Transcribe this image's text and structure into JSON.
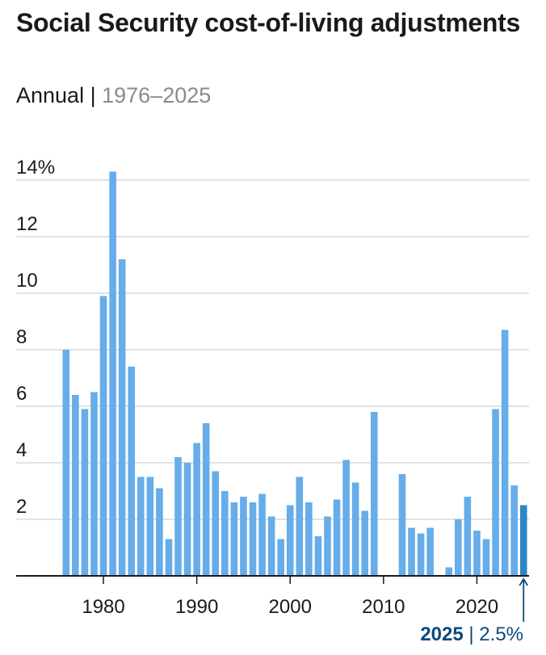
{
  "title": "Social Security cost-of-living adjustments",
  "subtitle": {
    "frequency": "Annual",
    "separator": "|",
    "range": "1976–2025"
  },
  "callout": {
    "year": "2025",
    "separator": "|",
    "value": "2.5%"
  },
  "colors": {
    "bar": "#66adea",
    "highlight": "#2e86c8",
    "grid": "#d0d0d0",
    "axis": "#1a1a1a",
    "callout": "#0b4a7a"
  },
  "chart_data": {
    "type": "bar",
    "title": "Social Security cost-of-living adjustments",
    "xlabel": "",
    "ylabel": "",
    "ylim": [
      0,
      14
    ],
    "y_ticks": [
      2,
      4,
      6,
      8,
      10,
      12,
      14
    ],
    "y_tick_labels": [
      "2",
      "4",
      "6",
      "8",
      "10",
      "12",
      "14%"
    ],
    "x_ticks": [
      1980,
      1990,
      2000,
      2010,
      2020
    ],
    "x_tick_labels": [
      "1980",
      "1990",
      "2000",
      "2010",
      "2020"
    ],
    "highlight_year": 2025,
    "years": [
      1976,
      1977,
      1978,
      1979,
      1980,
      1981,
      1982,
      1983,
      1984,
      1985,
      1986,
      1987,
      1988,
      1989,
      1990,
      1991,
      1992,
      1993,
      1994,
      1995,
      1996,
      1997,
      1998,
      1999,
      2000,
      2001,
      2002,
      2003,
      2004,
      2005,
      2006,
      2007,
      2008,
      2009,
      2010,
      2011,
      2012,
      2013,
      2014,
      2015,
      2016,
      2017,
      2018,
      2019,
      2020,
      2021,
      2022,
      2023,
      2024,
      2025
    ],
    "values": [
      8.0,
      6.4,
      5.9,
      6.5,
      9.9,
      14.3,
      11.2,
      7.4,
      3.5,
      3.5,
      3.1,
      1.3,
      4.2,
      4.0,
      4.7,
      5.4,
      3.7,
      3.0,
      2.6,
      2.8,
      2.6,
      2.9,
      2.1,
      1.3,
      2.5,
      3.5,
      2.6,
      1.4,
      2.1,
      2.7,
      4.1,
      3.3,
      2.3,
      5.8,
      0.0,
      0.0,
      3.6,
      1.7,
      1.5,
      1.7,
      0.0,
      0.3,
      2.0,
      2.8,
      1.6,
      1.3,
      5.9,
      8.7,
      3.2,
      2.5
    ]
  }
}
